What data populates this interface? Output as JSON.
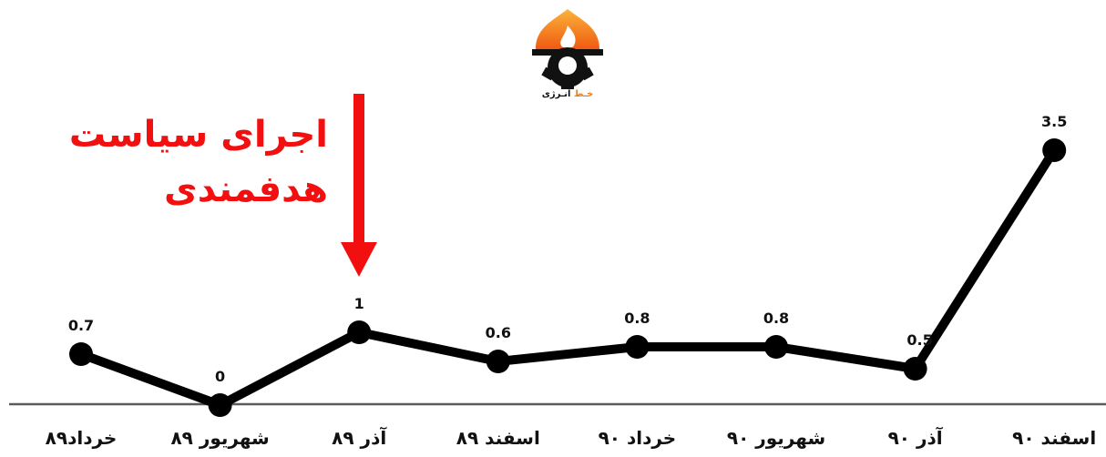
{
  "logo": {
    "text_highlight": "خـط",
    "text_main": " انـرژی",
    "colors": {
      "flame_top": "#fbb43b",
      "flame_bottom": "#f05a12",
      "gear": "#111111"
    }
  },
  "annotation": {
    "line1": "اجرای سیاست",
    "line2": "هدفمندی",
    "color": "#f20f0f"
  },
  "chart_data": {
    "type": "line",
    "categories": [
      "خرداد۸۹",
      "شهریور ۸۹",
      "آذر ۸۹",
      "اسفند ۸۹",
      "خرداد ۹۰",
      "شهریور ۹۰",
      "آذر ۹۰",
      "اسفند ۹۰"
    ],
    "values": [
      0.7,
      0,
      1,
      0.6,
      0.8,
      0.8,
      0.5,
      3.5
    ],
    "data_labels": [
      "0.7",
      "0",
      "1",
      "0.6",
      "0.8",
      "0.8",
      "0.5",
      "3.5"
    ],
    "ylim": [
      0,
      3.5
    ],
    "grid": false,
    "line_color": "#000000",
    "arrow_color": "#f20f0f",
    "arrow_category": "آذر ۸۹",
    "title": "",
    "xlabel": "",
    "ylabel": ""
  }
}
